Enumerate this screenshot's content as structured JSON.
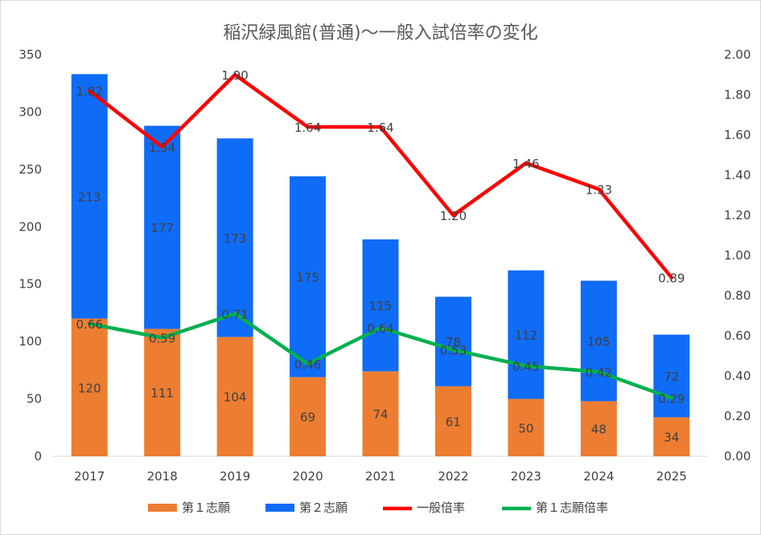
{
  "chart_data": {
    "type": "bar",
    "title": "稲沢緑風館(普通)〜一般入試倍率の変化",
    "categories": [
      "2017",
      "2018",
      "2019",
      "2020",
      "2021",
      "2022",
      "2023",
      "2024",
      "2025"
    ],
    "stacked": true,
    "series": [
      {
        "name": "第１志願",
        "type": "bar",
        "axis": "left",
        "color": "#ed7d31",
        "values": [
          120,
          111,
          104,
          69,
          74,
          61,
          50,
          48,
          34
        ]
      },
      {
        "name": "第２志願",
        "type": "bar",
        "axis": "left",
        "color": "#0f6cf7",
        "values": [
          213,
          177,
          173,
          175,
          115,
          78,
          112,
          105,
          72
        ]
      },
      {
        "name": "一般倍率",
        "type": "line",
        "axis": "right",
        "color": "#ff0000",
        "values": [
          1.82,
          1.54,
          1.9,
          1.64,
          1.64,
          1.2,
          1.46,
          1.33,
          0.89
        ],
        "labels": [
          "1.82",
          "1.54",
          "1.90",
          "1.64",
          "1.64",
          "1.20",
          "1.46",
          "1.33",
          "0.89"
        ]
      },
      {
        "name": "第１志願倍率",
        "type": "line",
        "axis": "right",
        "color": "#00b050",
        "values": [
          0.66,
          0.59,
          0.71,
          0.46,
          0.64,
          0.53,
          0.45,
          0.42,
          0.29
        ],
        "labels": [
          "0.66",
          "0.59",
          "0.71",
          "0.46",
          "0.64",
          "0.53",
          "0.45",
          "0.42",
          "0.29"
        ]
      }
    ],
    "y_left": {
      "min": 0,
      "max": 350,
      "step": 50,
      "ticks": [
        "0",
        "50",
        "100",
        "150",
        "200",
        "250",
        "300",
        "350"
      ]
    },
    "y_right": {
      "min": 0,
      "max": 2.0,
      "step": 0.2,
      "ticks": [
        "0.00",
        "0.20",
        "0.40",
        "0.60",
        "0.80",
        "1.00",
        "1.20",
        "1.40",
        "1.60",
        "1.80",
        "2.00"
      ]
    },
    "grid": false,
    "legend_position": "bottom"
  },
  "colors": {
    "label_on_line": "#ffff00",
    "text": "#404040",
    "axis": "#d9d9d9"
  }
}
